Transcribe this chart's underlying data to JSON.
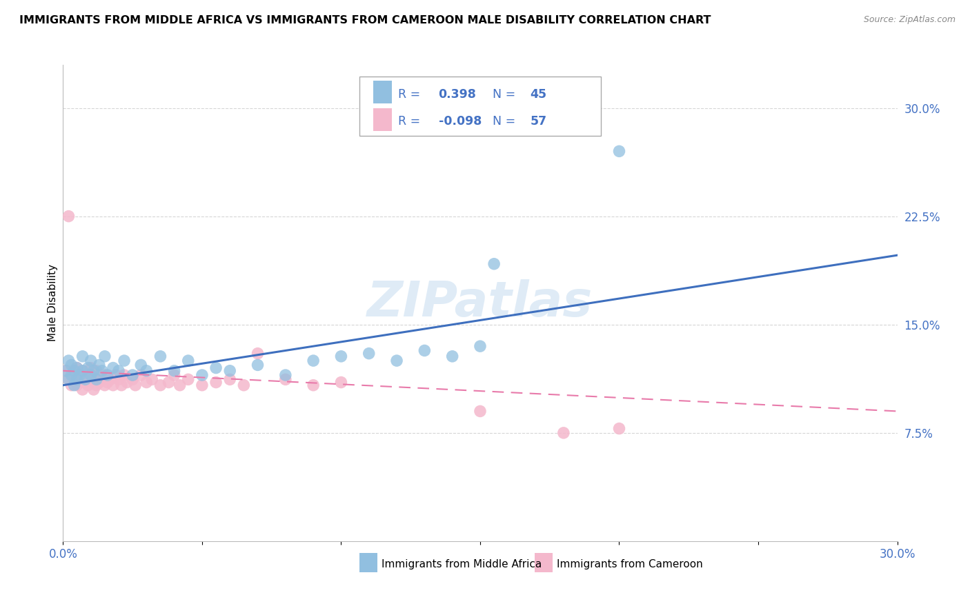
{
  "title": "IMMIGRANTS FROM MIDDLE AFRICA VS IMMIGRANTS FROM CAMEROON MALE DISABILITY CORRELATION CHART",
  "source": "Source: ZipAtlas.com",
  "ylabel": "Male Disability",
  "xlim": [
    0.0,
    0.3
  ],
  "ylim": [
    0.0,
    0.33
  ],
  "xticks": [
    0.0,
    0.05,
    0.1,
    0.15,
    0.2,
    0.25,
    0.3
  ],
  "yticks": [
    0.075,
    0.15,
    0.225,
    0.3
  ],
  "yticklabels": [
    "7.5%",
    "15.0%",
    "22.5%",
    "30.0%"
  ],
  "series1_name": "Immigrants from Middle Africa",
  "series1_color": "#91bfe0",
  "series2_name": "Immigrants from Cameroon",
  "series2_color": "#f4b8cc",
  "watermark": "ZIPatlas",
  "background_color": "#ffffff",
  "grid_color": "#cccccc",
  "legend_color": "#4472c4",
  "trendline1_color": "#3e6fbe",
  "trendline2_color": "#e87aaa",
  "blue_scatter": [
    [
      0.001,
      0.118
    ],
    [
      0.002,
      0.112
    ],
    [
      0.002,
      0.125
    ],
    [
      0.003,
      0.115
    ],
    [
      0.003,
      0.122
    ],
    [
      0.004,
      0.108
    ],
    [
      0.004,
      0.118
    ],
    [
      0.005,
      0.12
    ],
    [
      0.005,
      0.112
    ],
    [
      0.006,
      0.115
    ],
    [
      0.007,
      0.118
    ],
    [
      0.007,
      0.128
    ],
    [
      0.008,
      0.112
    ],
    [
      0.009,
      0.12
    ],
    [
      0.01,
      0.115
    ],
    [
      0.01,
      0.125
    ],
    [
      0.011,
      0.118
    ],
    [
      0.012,
      0.112
    ],
    [
      0.013,
      0.122
    ],
    [
      0.014,
      0.118
    ],
    [
      0.015,
      0.128
    ],
    [
      0.016,
      0.115
    ],
    [
      0.018,
      0.12
    ],
    [
      0.02,
      0.118
    ],
    [
      0.022,
      0.125
    ],
    [
      0.025,
      0.115
    ],
    [
      0.028,
      0.122
    ],
    [
      0.03,
      0.118
    ],
    [
      0.035,
      0.128
    ],
    [
      0.04,
      0.118
    ],
    [
      0.045,
      0.125
    ],
    [
      0.05,
      0.115
    ],
    [
      0.055,
      0.12
    ],
    [
      0.06,
      0.118
    ],
    [
      0.07,
      0.122
    ],
    [
      0.08,
      0.115
    ],
    [
      0.09,
      0.125
    ],
    [
      0.1,
      0.128
    ],
    [
      0.11,
      0.13
    ],
    [
      0.12,
      0.125
    ],
    [
      0.13,
      0.132
    ],
    [
      0.14,
      0.128
    ],
    [
      0.15,
      0.135
    ],
    [
      0.2,
      0.27
    ],
    [
      0.155,
      0.192
    ]
  ],
  "pink_scatter": [
    [
      0.001,
      0.118
    ],
    [
      0.002,
      0.112
    ],
    [
      0.002,
      0.225
    ],
    [
      0.003,
      0.115
    ],
    [
      0.003,
      0.108
    ],
    [
      0.004,
      0.118
    ],
    [
      0.004,
      0.112
    ],
    [
      0.005,
      0.12
    ],
    [
      0.005,
      0.108
    ],
    [
      0.006,
      0.115
    ],
    [
      0.006,
      0.112
    ],
    [
      0.007,
      0.118
    ],
    [
      0.007,
      0.105
    ],
    [
      0.008,
      0.115
    ],
    [
      0.008,
      0.11
    ],
    [
      0.009,
      0.112
    ],
    [
      0.009,
      0.108
    ],
    [
      0.01,
      0.115
    ],
    [
      0.01,
      0.12
    ],
    [
      0.011,
      0.112
    ],
    [
      0.011,
      0.105
    ],
    [
      0.012,
      0.118
    ],
    [
      0.012,
      0.108
    ],
    [
      0.013,
      0.115
    ],
    [
      0.013,
      0.11
    ],
    [
      0.014,
      0.112
    ],
    [
      0.015,
      0.108
    ],
    [
      0.015,
      0.115
    ],
    [
      0.016,
      0.11
    ],
    [
      0.017,
      0.112
    ],
    [
      0.018,
      0.108
    ],
    [
      0.019,
      0.115
    ],
    [
      0.02,
      0.112
    ],
    [
      0.021,
      0.108
    ],
    [
      0.022,
      0.115
    ],
    [
      0.023,
      0.11
    ],
    [
      0.025,
      0.112
    ],
    [
      0.026,
      0.108
    ],
    [
      0.028,
      0.115
    ],
    [
      0.03,
      0.11
    ],
    [
      0.032,
      0.112
    ],
    [
      0.035,
      0.108
    ],
    [
      0.038,
      0.11
    ],
    [
      0.04,
      0.115
    ],
    [
      0.042,
      0.108
    ],
    [
      0.045,
      0.112
    ],
    [
      0.05,
      0.108
    ],
    [
      0.055,
      0.11
    ],
    [
      0.06,
      0.112
    ],
    [
      0.065,
      0.108
    ],
    [
      0.07,
      0.13
    ],
    [
      0.08,
      0.112
    ],
    [
      0.09,
      0.108
    ],
    [
      0.1,
      0.11
    ],
    [
      0.15,
      0.09
    ],
    [
      0.18,
      0.075
    ],
    [
      0.2,
      0.078
    ]
  ],
  "blue_trendline": [
    [
      0.0,
      0.108
    ],
    [
      0.3,
      0.198
    ]
  ],
  "pink_trendline": [
    [
      0.0,
      0.118
    ],
    [
      0.3,
      0.09
    ]
  ]
}
